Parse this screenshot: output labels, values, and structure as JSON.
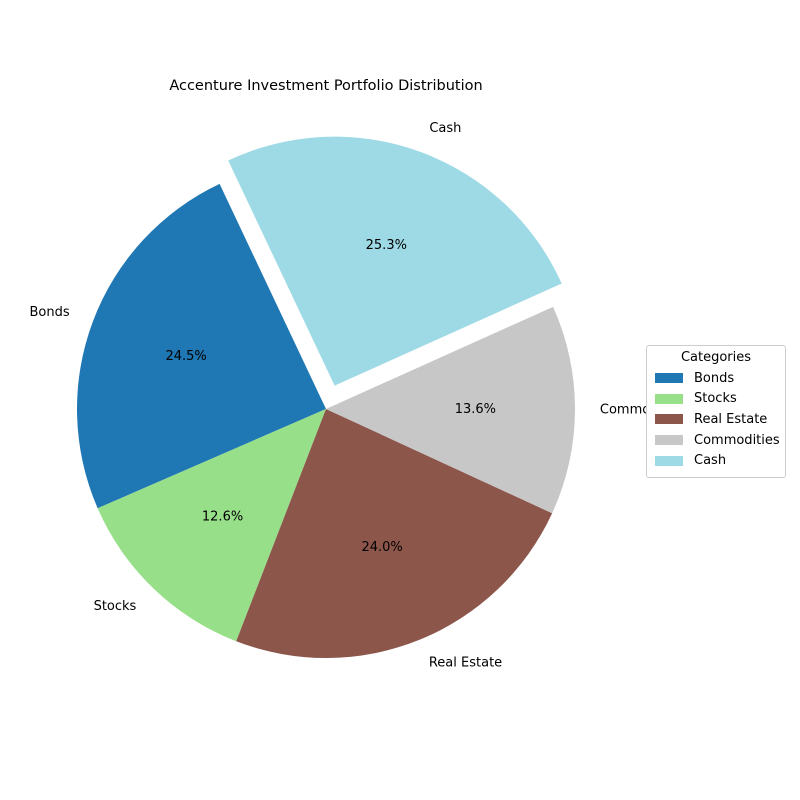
{
  "chart_data": {
    "type": "pie",
    "title": "Accenture Investment Portfolio Distribution",
    "categories": [
      "Bonds",
      "Stocks",
      "Real Estate",
      "Commodities",
      "Cash"
    ],
    "values": [
      24.5,
      12.6,
      24.0,
      13.6,
      25.3
    ],
    "value_labels": [
      "24.5%",
      "12.6%",
      "24.0%",
      "13.6%",
      "25.3%"
    ],
    "colors": [
      "#1f77b4",
      "#98df8a",
      "#8c564b",
      "#c7c7c7",
      "#9edae5"
    ],
    "exploded": [
      "Cash"
    ],
    "legend": {
      "title": "Categories",
      "placement": "right",
      "entries": [
        "Bonds",
        "Stocks",
        "Real Estate",
        "Commodities",
        "Cash"
      ]
    }
  }
}
